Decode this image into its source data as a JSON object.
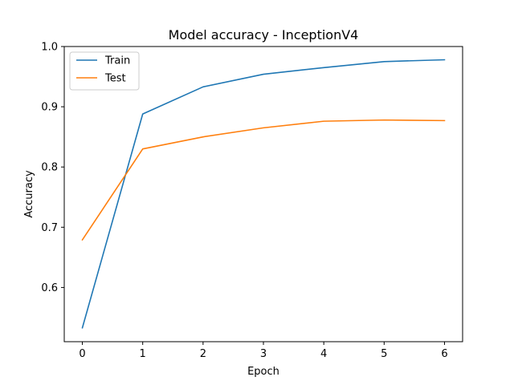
{
  "chart_data": {
    "type": "line",
    "title": "Model accuracy - InceptionV4",
    "xlabel": "Epoch",
    "ylabel": "Accuracy",
    "x": [
      0,
      1,
      2,
      3,
      4,
      5,
      6
    ],
    "xlim": [
      -0.3,
      6.3
    ],
    "ylim": [
      0.51,
      1.0
    ],
    "xticks": [
      "0",
      "1",
      "2",
      "3",
      "4",
      "5",
      "6"
    ],
    "yticks": [
      "0.6",
      "0.7",
      "0.8",
      "0.9",
      "1.0"
    ],
    "grid": false,
    "legend_position": "upper-left",
    "series": [
      {
        "name": "Train",
        "color": "#1f77b4",
        "values": [
          0.533,
          0.888,
          0.933,
          0.954,
          0.965,
          0.975,
          0.978
        ]
      },
      {
        "name": "Test",
        "color": "#ff7f0e",
        "values": [
          0.679,
          0.83,
          0.85,
          0.865,
          0.876,
          0.878,
          0.877
        ]
      }
    ]
  }
}
